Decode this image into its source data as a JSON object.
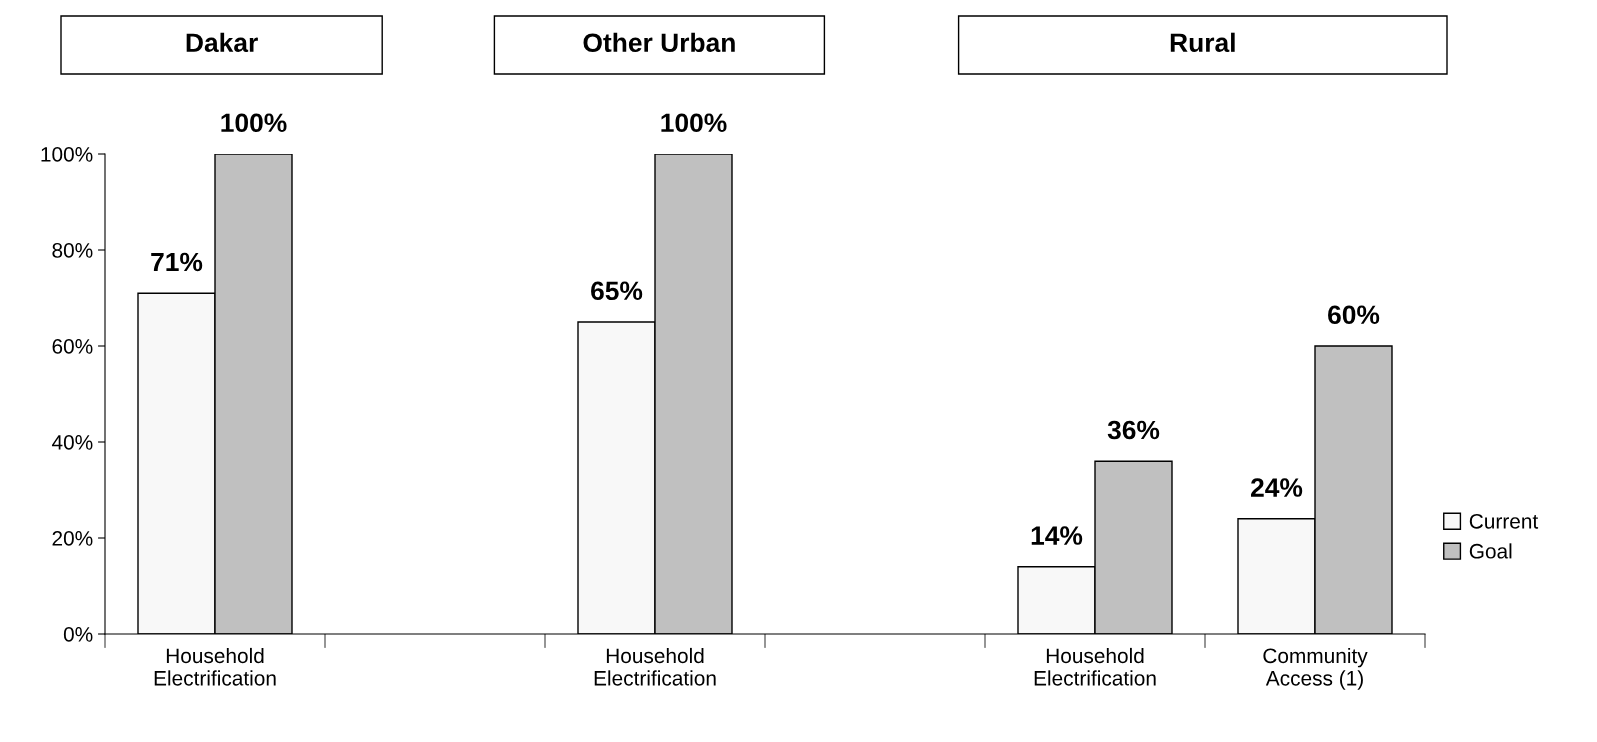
{
  "chart_data": {
    "type": "bar",
    "categories": [
      "Household\nElectrification",
      null,
      "Household\nElectrification",
      null,
      "Household\nElectrification",
      "Community\nAccess (1)"
    ],
    "series": [
      {
        "name": "Current",
        "color": "#f8f8f8",
        "values": [
          71,
          null,
          65,
          null,
          14,
          24
        ],
        "value_labels": [
          "71%",
          null,
          "65%",
          null,
          "14%",
          "24%"
        ]
      },
      {
        "name": "Goal",
        "color": "#c0c0c0",
        "values": [
          100,
          null,
          100,
          null,
          36,
          60
        ],
        "value_labels": [
          "100%",
          null,
          "100%",
          null,
          "36%",
          "60%"
        ]
      }
    ],
    "annotations": [
      "Dakar",
      "Other Urban",
      "Rural"
    ],
    "ylim": [
      0,
      100
    ],
    "yticks": [
      {
        "value": 0,
        "label": "0%"
      },
      {
        "value": 20,
        "label": "20%"
      },
      {
        "value": 40,
        "label": "40%"
      },
      {
        "value": 60,
        "label": "60%"
      },
      {
        "value": 80,
        "label": "80%"
      },
      {
        "value": 100,
        "label": "100%"
      }
    ],
    "legend": "right",
    "grid": false
  }
}
